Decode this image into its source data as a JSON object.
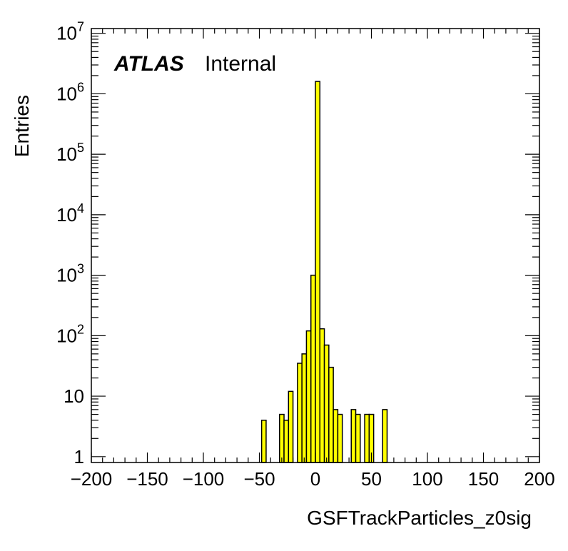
{
  "chart_data": {
    "type": "bar",
    "subtype": "histogram",
    "xlabel": "GSFTrackParticles_z0sig",
    "ylabel": "Entries",
    "yscale": "log",
    "xlim": [
      -200,
      200
    ],
    "ylim": [
      0.8,
      12000000
    ],
    "x_ticks": [
      "−200",
      "−150",
      "−100",
      "−50",
      "0",
      "50",
      "100",
      "150",
      "200"
    ],
    "x_tick_values": [
      -200,
      -150,
      -100,
      -50,
      0,
      50,
      100,
      150,
      200
    ],
    "y_ticks": [
      {
        "value": 1,
        "base": "1",
        "exp": ""
      },
      {
        "value": 10,
        "base": "10",
        "exp": ""
      },
      {
        "value": 100,
        "base": "10",
        "exp": "2"
      },
      {
        "value": 1000,
        "base": "10",
        "exp": "3"
      },
      {
        "value": 10000,
        "base": "10",
        "exp": "4"
      },
      {
        "value": 100000,
        "base": "10",
        "exp": "5"
      },
      {
        "value": 1000000,
        "base": "10",
        "exp": "6"
      },
      {
        "value": 10000000,
        "base": "10",
        "exp": "7"
      }
    ],
    "bin_width": 4,
    "bins": [
      {
        "x0": -48,
        "x1": -44,
        "value": 4
      },
      {
        "x0": -32,
        "x1": -28,
        "value": 5
      },
      {
        "x0": -28,
        "x1": -24,
        "value": 4
      },
      {
        "x0": -24,
        "x1": -20,
        "value": 12
      },
      {
        "x0": -16,
        "x1": -12,
        "value": 35
      },
      {
        "x0": -12,
        "x1": -8,
        "value": 50
      },
      {
        "x0": -8,
        "x1": -4,
        "value": 120
      },
      {
        "x0": -4,
        "x1": 0,
        "value": 1000
      },
      {
        "x0": 0,
        "x1": 4,
        "value": 1600000
      },
      {
        "x0": 4,
        "x1": 8,
        "value": 130
      },
      {
        "x0": 8,
        "x1": 12,
        "value": 70
      },
      {
        "x0": 12,
        "x1": 16,
        "value": 30
      },
      {
        "x0": 16,
        "x1": 20,
        "value": 6
      },
      {
        "x0": 20,
        "x1": 24,
        "value": 5
      },
      {
        "x0": 32,
        "x1": 36,
        "value": 6
      },
      {
        "x0": 36,
        "x1": 40,
        "value": 5
      },
      {
        "x0": 44,
        "x1": 48,
        "value": 5
      },
      {
        "x0": 48,
        "x1": 52,
        "value": 5
      },
      {
        "x0": 60,
        "x1": 64,
        "value": 6
      }
    ],
    "fill_color": "#ffff00",
    "line_color": "#000000",
    "grid": false,
    "legend": "none"
  },
  "label": {
    "experiment": "ATLAS",
    "status": "Internal"
  }
}
